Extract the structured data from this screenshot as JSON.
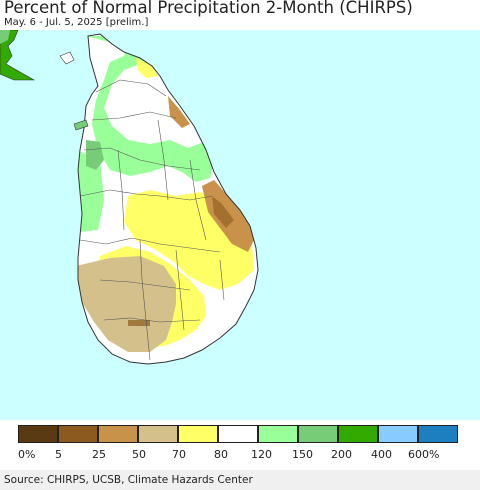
{
  "title": "Percent of Normal Precipitation 2-Month (CHIRPS)",
  "subtitle": "May. 6 - Jul. 5, 2025 [prelim.]",
  "source": "Source: CHIRPS, UCSB, Climate Hazards Center",
  "colors": {
    "ocean": "#ccffff",
    "land_default": "#ffffff",
    "border": "#333333"
  },
  "legend": {
    "swatches": [
      {
        "color": "#5a3a12"
      },
      {
        "color": "#8c5a1e"
      },
      {
        "color": "#c8924a"
      },
      {
        "color": "#d4c08a"
      },
      {
        "color": "#ffff66"
      },
      {
        "color": "#ffffff"
      },
      {
        "color": "#99ff99"
      },
      {
        "color": "#77cc77"
      },
      {
        "color": "#33aa00"
      },
      {
        "color": "#88ccff"
      },
      {
        "color": "#1e7fc0"
      }
    ],
    "labels": [
      "0%",
      "5",
      "25",
      "50",
      "70",
      "80",
      "120",
      "150",
      "200",
      "400",
      "600%"
    ]
  }
}
